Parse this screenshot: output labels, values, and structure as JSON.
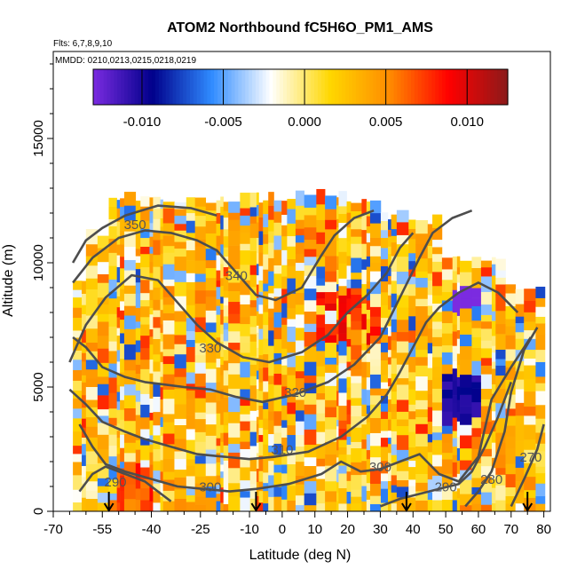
{
  "chart_data": {
    "type": "heatmap",
    "title": "ATOM2 Northbound fC5H6O_PM1_AMS",
    "flights_label": "Flts: 6,7,8,9,10",
    "dates_label": "MMDD: 0210,0213,0215,0218,0219",
    "xlabel": "Latitude (deg N)",
    "ylabel": "Altitude (m)",
    "xlim": [
      -70,
      82
    ],
    "ylim": [
      0,
      18500
    ],
    "x_ticks": [
      -70,
      -55,
      -40,
      -25,
      -10,
      0,
      10,
      20,
      30,
      40,
      50,
      60,
      70,
      80
    ],
    "y_ticks": [
      0,
      5000,
      10000,
      15000
    ],
    "colorbar": {
      "range": [
        -0.013,
        0.0125
      ],
      "ticks": [
        -0.01,
        -0.005,
        0.0,
        0.005,
        0.01
      ],
      "tick_labels": [
        "-0.010",
        "-0.005",
        "0.000",
        "0.005",
        "0.010"
      ],
      "colors": [
        "#7b2be0",
        "#00008b",
        "#2f8bff",
        "#ffffff",
        "#ffd700",
        "#ff8c00",
        "#ff0000",
        "#8b1a1a"
      ]
    },
    "theta_contours": [
      {
        "level": "350",
        "label_x": -45,
        "label_y": 11350,
        "points": [
          [
            -64,
            10000
          ],
          [
            -60,
            10900
          ],
          [
            -55,
            11400
          ],
          [
            -48,
            11900
          ],
          [
            -38,
            12300
          ],
          [
            -28,
            12200
          ],
          [
            -20,
            11900
          ]
        ]
      },
      {
        "level": "340",
        "label_x": -14,
        "label_y": 9300,
        "points": [
          [
            -64,
            9200
          ],
          [
            -58,
            10200
          ],
          [
            -50,
            11000
          ],
          [
            -42,
            11300
          ],
          [
            -34,
            11200
          ],
          [
            -26,
            10900
          ],
          [
            -20,
            10500
          ],
          [
            -16,
            9900
          ],
          [
            -12,
            9300
          ],
          [
            -8,
            8700
          ],
          [
            -2,
            8500
          ],
          [
            6,
            9000
          ],
          [
            12,
            10300
          ],
          [
            16,
            11100
          ],
          [
            22,
            11800
          ],
          [
            28,
            12100
          ]
        ]
      },
      {
        "level": "330",
        "label_x": -22,
        "label_y": 6400,
        "points": [
          [
            -65,
            6000
          ],
          [
            -60,
            7500
          ],
          [
            -54,
            8600
          ],
          [
            -46,
            9500
          ],
          [
            -38,
            9300
          ],
          [
            -32,
            8400
          ],
          [
            -26,
            7500
          ],
          [
            -20,
            6800
          ],
          [
            -12,
            6200
          ],
          [
            -4,
            6000
          ],
          [
            6,
            6400
          ],
          [
            14,
            7100
          ],
          [
            20,
            8000
          ],
          [
            26,
            8700
          ],
          [
            32,
            9600
          ],
          [
            36,
            10600
          ],
          [
            40,
            11200
          ]
        ]
      },
      {
        "level": "320",
        "label_x": 4,
        "label_y": 4600,
        "points": [
          [
            -64,
            7000
          ],
          [
            -60,
            6600
          ],
          [
            -55,
            5800
          ],
          [
            -48,
            5400
          ],
          [
            -42,
            5200
          ],
          [
            -36,
            5100
          ],
          [
            -30,
            5000
          ],
          [
            -22,
            4900
          ],
          [
            -14,
            4600
          ],
          [
            -6,
            4400
          ],
          [
            4,
            4700
          ],
          [
            14,
            5200
          ],
          [
            22,
            5900
          ],
          [
            30,
            7000
          ],
          [
            36,
            8600
          ],
          [
            42,
            10200
          ],
          [
            46,
            11200
          ],
          [
            52,
            11800
          ],
          [
            58,
            12100
          ]
        ]
      },
      {
        "level": "310",
        "label_x": 0,
        "label_y": 2300,
        "points": [
          [
            -65,
            4900
          ],
          [
            -60,
            4300
          ],
          [
            -55,
            3600
          ],
          [
            -48,
            3200
          ],
          [
            -42,
            2900
          ],
          [
            -34,
            2600
          ],
          [
            -26,
            2300
          ],
          [
            -18,
            2200
          ],
          [
            -10,
            2100
          ],
          [
            -2,
            2200
          ],
          [
            8,
            2400
          ],
          [
            18,
            3000
          ],
          [
            26,
            3800
          ],
          [
            32,
            4700
          ],
          [
            36,
            5600
          ],
          [
            40,
            6600
          ],
          [
            44,
            7600
          ],
          [
            48,
            8200
          ],
          [
            54,
            8800
          ],
          [
            60,
            9200
          ],
          [
            66,
            8800
          ],
          [
            72,
            8000
          ]
        ]
      },
      {
        "level": "300",
        "label_x": -22,
        "label_y": 800,
        "points": [
          [
            -62,
            3500
          ],
          [
            -58,
            2600
          ],
          [
            -54,
            1900
          ],
          [
            -48,
            1600
          ],
          [
            -40,
            1300
          ],
          [
            -32,
            1000
          ],
          [
            -24,
            900
          ],
          [
            -16,
            800
          ],
          [
            -8,
            900
          ],
          [
            2,
            1100
          ],
          [
            12,
            1500
          ],
          [
            18,
            2000
          ],
          [
            24,
            1600
          ],
          [
            30,
            1700
          ],
          [
            36,
            2000
          ],
          [
            42,
            2300
          ],
          [
            48,
            1500
          ],
          [
            54,
            1200
          ],
          [
            60,
            2200
          ],
          [
            64,
            4500
          ],
          [
            70,
            5800
          ],
          [
            76,
            7000
          ]
        ]
      },
      {
        "level": "300",
        "label_x": 30,
        "label_y": 1600,
        "points": []
      },
      {
        "level": "290",
        "label_x": -51,
        "label_y": 1000,
        "points": [
          [
            -62,
            800
          ],
          [
            -58,
            1500
          ],
          [
            -54,
            1800
          ],
          [
            -48,
            1500
          ],
          [
            -42,
            1200
          ],
          [
            -38,
            800
          ],
          [
            -34,
            400
          ]
        ]
      },
      {
        "level": "290",
        "label_x": 50,
        "label_y": 800,
        "points": [
          [
            30,
            200
          ],
          [
            36,
            500
          ],
          [
            42,
            700
          ],
          [
            48,
            900
          ],
          [
            54,
            1100
          ],
          [
            58,
            1600
          ],
          [
            62,
            2600
          ],
          [
            66,
            3800
          ],
          [
            70,
            5200
          ]
        ]
      },
      {
        "level": "280",
        "label_x": 64,
        "label_y": 1100,
        "points": [
          [
            56,
            200
          ],
          [
            60,
            800
          ],
          [
            64,
            1600
          ],
          [
            68,
            3200
          ],
          [
            70,
            4800
          ],
          [
            74,
            6500
          ],
          [
            78,
            7400
          ]
        ]
      },
      {
        "level": "270",
        "label_x": 76,
        "label_y": 2000,
        "points": [
          [
            70,
            200
          ],
          [
            74,
            1300
          ],
          [
            78,
            2500
          ],
          [
            80,
            3500
          ]
        ]
      }
    ],
    "arrows_latitudes": [
      -53,
      -8,
      38,
      75
    ]
  }
}
